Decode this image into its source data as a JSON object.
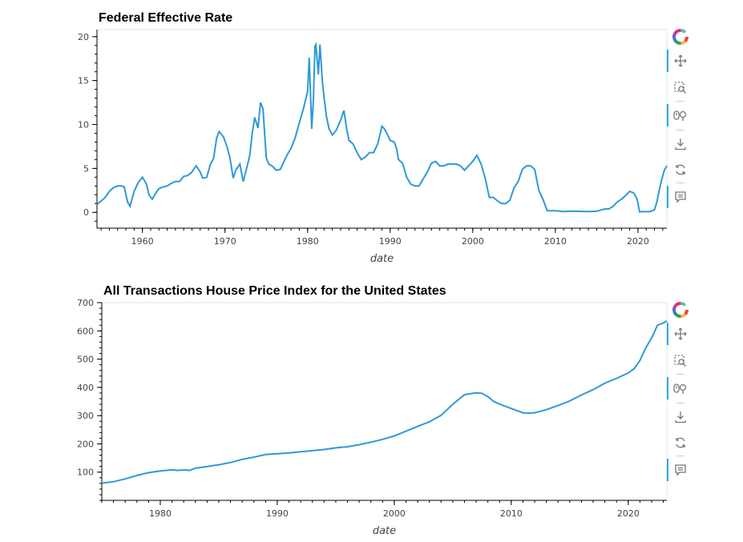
{
  "charts": [
    {
      "title": "Federal Effective Rate",
      "xlabel": "date",
      "x_ticks": [
        "1960",
        "1970",
        "1980",
        "1990",
        "2000",
        "2010",
        "2020"
      ],
      "y_ticks": [
        "0",
        "5",
        "10",
        "15",
        "20"
      ]
    },
    {
      "title": "All Transactions House Price Index for the United States",
      "xlabel": "date",
      "x_ticks": [
        "1980",
        "1990",
        "2000",
        "2010",
        "2020"
      ],
      "y_ticks": [
        "100",
        "200",
        "300",
        "400",
        "500",
        "600",
        "700"
      ]
    }
  ],
  "toolbar": {
    "tools": [
      "bokeh-logo-icon",
      "pan-icon",
      "box-zoom-icon",
      "wheel-zoom-icon",
      "save-icon",
      "reset-icon",
      "hover-icon"
    ]
  },
  "colors": {
    "line": "#2e9ad6",
    "grid_none": true
  },
  "chart_data": [
    {
      "type": "line",
      "title": "Federal Effective Rate",
      "xlabel": "date",
      "ylabel": "",
      "xlim": [
        1954.5,
        2023.5
      ],
      "ylim": [
        -1.8,
        20.8
      ],
      "grid": false,
      "x": [
        1954.5,
        1955.0,
        1955.5,
        1956.0,
        1956.5,
        1957.0,
        1957.5,
        1957.8,
        1958.2,
        1958.5,
        1959.0,
        1959.5,
        1960.0,
        1960.5,
        1960.8,
        1961.2,
        1961.5,
        1962.0,
        1962.5,
        1963.0,
        1963.5,
        1964.0,
        1964.5,
        1965.0,
        1965.5,
        1966.0,
        1966.5,
        1967.0,
        1967.3,
        1967.8,
        1968.2,
        1968.6,
        1969.0,
        1969.3,
        1969.8,
        1970.2,
        1970.6,
        1971.0,
        1971.3,
        1971.8,
        1972.2,
        1972.7,
        1973.0,
        1973.3,
        1973.6,
        1974.0,
        1974.3,
        1974.6,
        1975.0,
        1975.3,
        1975.8,
        1976.2,
        1976.7,
        1977.0,
        1977.5,
        1978.0,
        1978.5,
        1979.0,
        1979.5,
        1980.0,
        1980.2,
        1980.5,
        1980.7,
        1980.9,
        1981.0,
        1981.3,
        1981.5,
        1981.8,
        1982.0,
        1982.3,
        1982.6,
        1983.0,
        1983.5,
        1984.0,
        1984.4,
        1984.7,
        1985.0,
        1985.5,
        1986.0,
        1986.5,
        1987.0,
        1987.5,
        1988.0,
        1988.5,
        1989.0,
        1989.3,
        1989.7,
        1990.0,
        1990.5,
        1990.8,
        1991.0,
        1991.5,
        1992.0,
        1992.5,
        1993.0,
        1993.5,
        1994.0,
        1994.5,
        1995.0,
        1995.5,
        1996.0,
        1996.5,
        1997.0,
        1997.5,
        1998.0,
        1998.5,
        1999.0,
        1999.5,
        2000.0,
        2000.5,
        2001.0,
        2001.5,
        2002.0,
        2002.5,
        2003.0,
        2003.5,
        2004.0,
        2004.5,
        2005.0,
        2005.5,
        2006.0,
        2006.5,
        2007.0,
        2007.5,
        2008.0,
        2008.5,
        2009.0,
        2010.0,
        2011.0,
        2012.0,
        2013.0,
        2014.0,
        2015.0,
        2015.9,
        2016.5,
        2017.0,
        2017.5,
        2018.0,
        2018.5,
        2019.0,
        2019.5,
        2019.9,
        2020.2,
        2020.5,
        2021.0,
        2021.5,
        2022.0,
        2022.3,
        2022.6,
        2022.9,
        2023.2,
        2023.5
      ],
      "y": [
        0.9,
        1.3,
        1.7,
        2.4,
        2.8,
        3.0,
        3.0,
        2.9,
        1.2,
        0.7,
        2.4,
        3.4,
        4.0,
        3.2,
        2.0,
        1.5,
        2.0,
        2.7,
        2.9,
        3.0,
        3.3,
        3.5,
        3.5,
        4.1,
        4.2,
        4.6,
        5.3,
        4.6,
        3.9,
        4.0,
        5.4,
        6.1,
        8.5,
        9.2,
        8.6,
        7.6,
        6.2,
        3.9,
        4.8,
        5.5,
        3.5,
        5.3,
        6.5,
        9.0,
        10.8,
        9.6,
        12.5,
        11.8,
        6.2,
        5.5,
        5.2,
        4.8,
        4.9,
        5.5,
        6.5,
        7.3,
        8.5,
        10.2,
        11.8,
        13.8,
        17.6,
        9.5,
        12.8,
        18.9,
        19.1,
        15.7,
        19.1,
        14.8,
        13.0,
        10.8,
        9.5,
        8.8,
        9.4,
        10.5,
        11.6,
        9.7,
        8.2,
        7.8,
        6.8,
        6.0,
        6.3,
        6.8,
        6.8,
        7.8,
        9.8,
        9.5,
        8.8,
        8.2,
        8.0,
        7.2,
        6.0,
        5.6,
        4.0,
        3.2,
        3.0,
        3.0,
        3.8,
        4.6,
        5.6,
        5.8,
        5.3,
        5.3,
        5.5,
        5.5,
        5.5,
        5.3,
        4.8,
        5.3,
        5.8,
        6.5,
        5.5,
        3.9,
        1.7,
        1.7,
        1.3,
        1.0,
        1.0,
        1.4,
        2.8,
        3.5,
        4.9,
        5.3,
        5.3,
        4.9,
        2.5,
        1.5,
        0.2,
        0.18,
        0.1,
        0.14,
        0.11,
        0.09,
        0.12,
        0.37,
        0.4,
        0.7,
        1.2,
        1.5,
        1.9,
        2.4,
        2.2,
        1.5,
        0.05,
        0.09,
        0.08,
        0.1,
        0.3,
        1.2,
        2.6,
        3.8,
        4.8,
        5.3
      ]
    },
    {
      "type": "line",
      "title": "All Transactions House Price Index for the United States",
      "xlabel": "date",
      "ylabel": "",
      "xlim": [
        1975,
        2023.3
      ],
      "ylim": [
        0,
        700
      ],
      "grid": false,
      "x": [
        1975,
        1976,
        1977,
        1978,
        1979,
        1980,
        1981,
        1981.5,
        1982,
        1982.5,
        1983,
        1984,
        1985,
        1986,
        1987,
        1988,
        1989,
        1990,
        1991,
        1992,
        1993,
        1994,
        1995,
        1996,
        1997,
        1998,
        1999,
        2000,
        2001,
        2002,
        2003,
        2004,
        2005,
        2006,
        2007,
        2007.5,
        2008,
        2008.5,
        2009,
        2010,
        2011,
        2011.5,
        2012,
        2013,
        2014,
        2015,
        2016,
        2017,
        2018,
        2019,
        2020,
        2020.5,
        2021,
        2021.5,
        2022,
        2022.5,
        2023,
        2023.3
      ],
      "y": [
        61,
        66,
        76,
        88,
        98,
        104,
        108,
        106,
        108,
        106,
        114,
        120,
        126,
        134,
        145,
        153,
        162,
        165,
        168,
        172,
        176,
        180,
        186,
        190,
        197,
        206,
        216,
        228,
        245,
        262,
        278,
        301,
        340,
        374,
        381,
        379,
        367,
        350,
        341,
        325,
        310,
        309,
        310,
        321,
        336,
        352,
        373,
        392,
        415,
        432,
        451,
        466,
        495,
        540,
        575,
        620,
        628,
        635
      ]
    }
  ]
}
